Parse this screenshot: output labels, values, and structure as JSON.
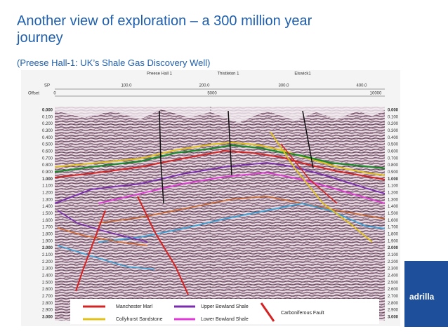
{
  "header": {
    "title": "Another view of exploration – a 300 million year journey",
    "subtitle": "(Preese Hall-1: UK’s Shale Gas Discovery Well)"
  },
  "section": {
    "wells": [
      "Preese Hall 1",
      "Thistleton 1",
      "Elswick1"
    ],
    "sp_label": "SP",
    "sp_ticks": [
      "100.0",
      "200.0",
      "300.0",
      "400.0"
    ],
    "offset_label": "Offset",
    "offset_ticks": [
      "0",
      "5000",
      "10000"
    ],
    "time_labels": [
      "0.000",
      "0.100",
      "0.200",
      "0.300",
      "0.400",
      "0.500",
      "0.600",
      "0.700",
      "0.800",
      "0.900",
      "1.000",
      "1.100",
      "1.200",
      "1.300",
      "1.400",
      "1.500",
      "1.600",
      "1.700",
      "1.800",
      "1.900",
      "2.000",
      "2.100",
      "2.200",
      "2.300",
      "2.400",
      "2.500",
      "2.600",
      "2.700",
      "2.800",
      "2.900",
      "3.000"
    ]
  },
  "legend": [
    "Manchester Marl",
    "Collyhurst Sandstone",
    "Upper Bowland Shale",
    "Lower Bowland Shale",
    "Carboniferous Fault"
  ],
  "logo": "adrilla"
}
